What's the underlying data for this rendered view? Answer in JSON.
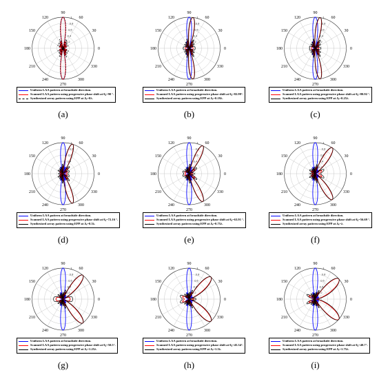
{
  "chart_data": [
    {
      "type": "polar",
      "label": "(a)",
      "steer_deg": 90,
      "legend": [
        "Uniform LAA pattern at broadside direction.",
        "Scanned LAA pattern using progressive phase shift at θ₀=90 °.",
        "Synthesized array pattern using EPP at Δₑ=0λ."
      ]
    },
    {
      "type": "polar",
      "label": "(b)",
      "steer_deg": 82.99,
      "legend": [
        "Uniform LAA pattern at broadside direction.",
        "Scanned LAA pattern using progressive phase shift at θ₀=82.99°.",
        "Synthesized array pattern using EPP at Δₑ=0.19λ."
      ]
    },
    {
      "type": "polar",
      "label": "(c)",
      "steer_deg": 80.92,
      "legend": [
        "Uniform LAA pattern at broadside direction.",
        "Scanned LAA pattern using progressive phase shift at θ₀=80.92 °.",
        "Synthesized array pattern using EPP at Δₑ=0.25λ."
      ]
    },
    {
      "type": "polar",
      "label": "(d)",
      "steer_deg": 72.16,
      "legend": [
        "Uniform LAA pattern at broadside direction.",
        "Scanned LAA pattern using progressive phase shift at θ₀=72.16 °.",
        "Synthesized array pattern using EPP at Δₑ=0.5λ."
      ]
    },
    {
      "type": "polar",
      "label": "(e)",
      "steer_deg": 63.91,
      "legend": [
        "Uniform LAA pattern at broadside direction.",
        "Scanned LAA pattern using progressive phase shift at θ₀=63.91 °.",
        "Synthesized array pattern using EPP at Δₑ=0.75λ."
      ]
    },
    {
      "type": "polar",
      "label": "(f)",
      "steer_deg": 56.69,
      "legend": [
        "Uniform LAA pattern at broadside direction.",
        "Scanned LAA pattern using progressive phase shift at θ₀=56.69 °.",
        "Synthesized array pattern using EPP at Δₑ=λ."
      ]
    },
    {
      "type": "polar",
      "label": "(g)",
      "steer_deg": 50.5,
      "legend": [
        "Uniform LAA pattern at broadside direction.",
        "Scanned LAA pattern using progressive phase shift at θ₀=50.5°.",
        "Synthesized array pattern using EPP at Δₑ=1.25λ."
      ]
    },
    {
      "type": "polar",
      "label": "(h)",
      "steer_deg": 45.34,
      "legend": [
        "Uniform LAA pattern at broadside direction.",
        "Scanned LAA pattern using progressive phase shift at θ₀=45.34°.",
        "Synthesized array pattern using EPP at Δₑ=1.5λ."
      ]
    },
    {
      "type": "polar",
      "label": "(i)",
      "steer_deg": 40.7,
      "legend": [
        "Uniform LAA pattern at broadside direction.",
        "Scanned LAA pattern using progressive phase shift at θ₀=40.7°.",
        "Synthesized array pattern using EPP at Δₑ=1.75λ."
      ]
    }
  ],
  "angle_labels": [
    "90",
    "60",
    "30",
    "0",
    "330",
    "300",
    "270",
    "240",
    "210",
    "180",
    "150",
    "120"
  ],
  "radial_labels": [
    "1",
    "0.8",
    "0.6",
    "0.4",
    "0.2"
  ],
  "colors": {
    "uniform": "#0000ff",
    "scanned": "#ff0000",
    "synthesized": "#000000"
  }
}
